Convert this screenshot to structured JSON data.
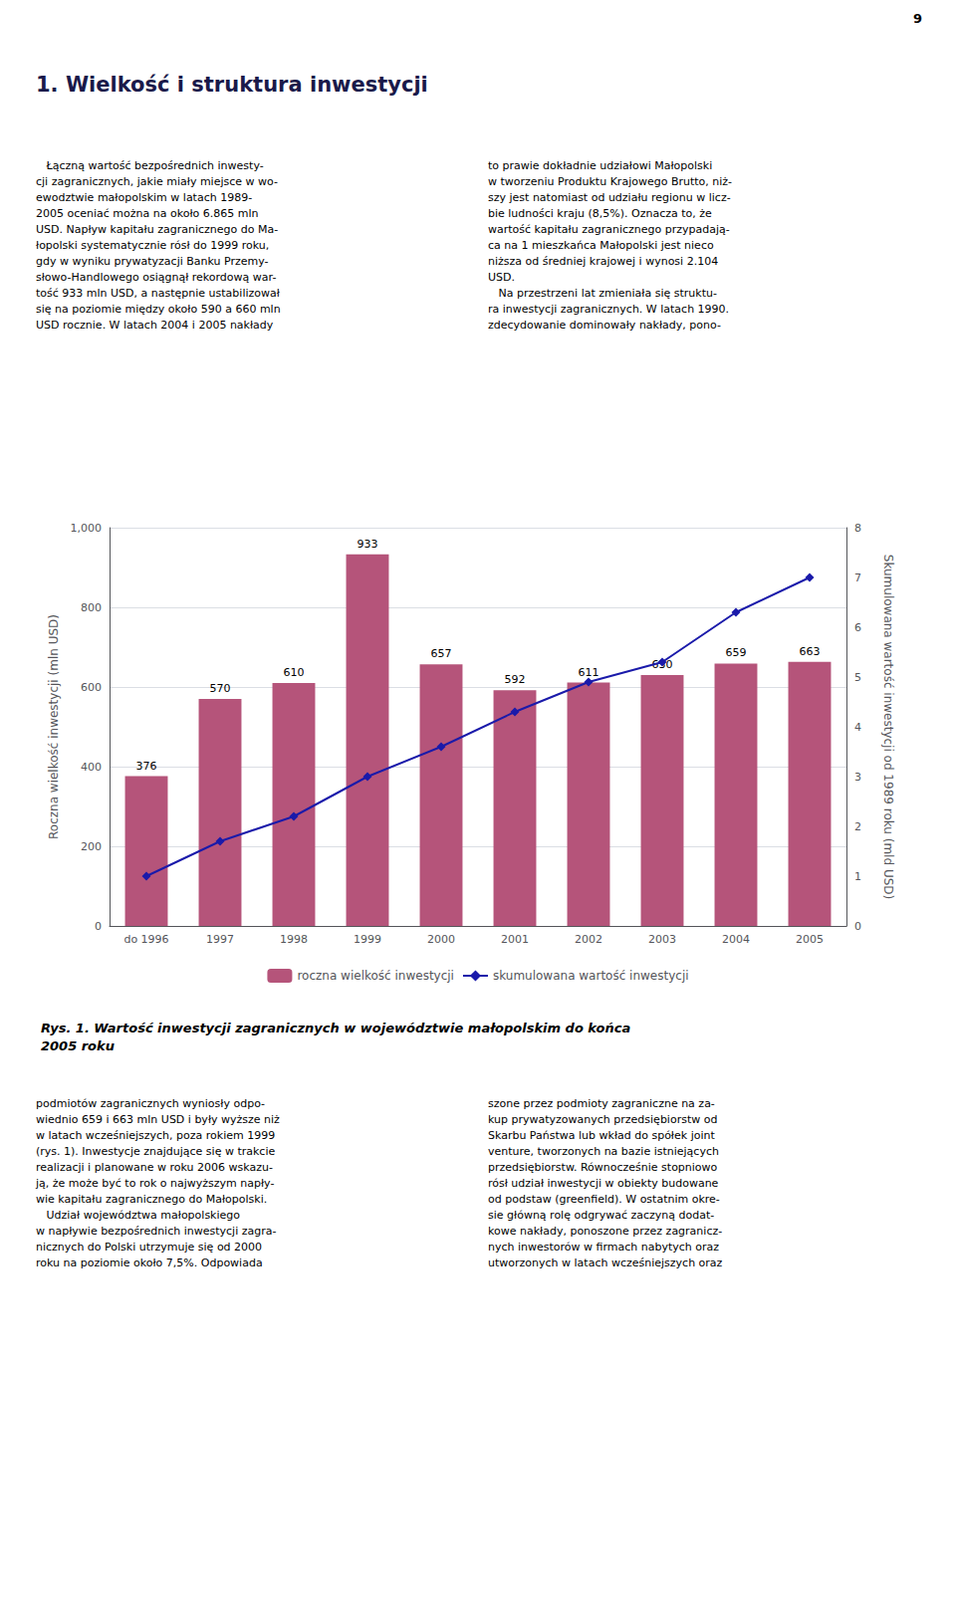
{
  "chart_data": {
    "type": "bar",
    "title": "Rys. 1. Wartość inwestycji zagranicznych w województwie małopolskim do końca\n2005 roku",
    "categories": [
      "do 1996",
      "1997",
      "1998",
      "1999",
      "2000",
      "2001",
      "2002",
      "2003",
      "2004",
      "2005"
    ],
    "series": [
      {
        "name": "roczna wielkość inwestycji",
        "type": "bar",
        "color": "#b5547a",
        "data_labels": true,
        "values": [
          376,
          570,
          610,
          933,
          657,
          592,
          611,
          630,
          659,
          663
        ]
      },
      {
        "name": "skumulowana wartość inwestycji",
        "type": "line",
        "color": "#1a1aaa",
        "marker": "diamond",
        "axis": "y2",
        "values": [
          1.0,
          1.7,
          2.2,
          3.0,
          3.6,
          4.3,
          4.9,
          5.3,
          6.3,
          7.0
        ]
      }
    ],
    "ylabel": "Roczna wielkość inwestycji (mln USD)",
    "y2label": "Skumulowana wartość inwestycji od 1989 roku (mld USD)",
    "ylim": [
      0,
      1000
    ],
    "yticks": [
      0,
      200,
      400,
      600,
      800,
      1000
    ],
    "y2lim": [
      0,
      8
    ],
    "y2ticks": [
      0,
      1,
      2,
      3,
      4,
      5,
      6,
      7,
      8
    ],
    "grid": true,
    "legend": "bottom",
    "annotations": [
      "9",
      "1. Wielkość i struktura inwestycji",
      "   Łączną wartość bezpośrednich inwesty-\ncji zagranicznych, jakie miały miejsce w wo-\newodztwie małopolskim w latach 1989-\n2005 oceniać można na około 6.865 mln\nUSD. Napływ kapitału zagranicznego do Ma-\nłopolski systematycznie rósł do 1999 roku,\ngdy w wyniku prywatyzacji Banku Przemy-\nsłowo-Handlowego osiągnął rekordową war-\ntość 933 mln USD, a następnie ustabilizował\nsię na poziomie między około 590 a 660 mln\nUSD rocznie. W latach 2004 i 2005 nakłady",
      "to prawie dokładnie udziałowi Małopolski\nw tworzeniu Produktu Krajowego Brutto, niż-\nszy jest natomiast od udziału regionu w licz-\nbie ludności kraju (8,5%). Oznacza to, że\nwartość kapitału zagranicznego przypadają-\nca na 1 mieszkańca Małopolski jest nieco\nniższa od średniej krajowej i wynosi 2.104\nUSD.\n   Na przestrzeni lat zmieniała się struktu-\nra inwestycji zagranicznych. W latach 1990.\nzdecydowanie dominowały nakłady, pono-",
      "podmiotów zagranicznych wyniosły odpo-\nwiednio 659 i 663 mln USD i były wyższe niż\nw latach wcześniejszych, poza rokiem 1999\n(rys. 1). Inwestycje znajdujące się w trakcie\nrealizacji i planowane w roku 2006 wskazu-\nją, że może być to rok o najwyższym napły-\nwie kapitału zagranicznego do Małopolski.\n   Udział województwa małopolskiego\nw napływie bezpośrednich inwestycji zagra-\nnicznych do Polski utrzymuje się od 2000\nroku na poziomie około 7,5%. Odpowiada",
      "szone przez podmioty zagraniczne na za-\nkup prywatyzowanych przedsiębiorstw od\nSkarbu Państwa lub wkład do spółek joint\nventure, tworzonych na bazie istniejących\nprzedsiębiorstw. Równocześnie stopniowo\nrósł udział inwestycji w obiekty budowane\nod podstaw (greenfield). W ostatnim okre-\nsie główną rolę odgrywać zaczyną dodat-\nkowe nakłady, ponoszone przez zagranicz-\nnych inwestorów w firmach nabytych oraz\nutworzonych w latach wcześniejszych oraz"
    ]
  }
}
